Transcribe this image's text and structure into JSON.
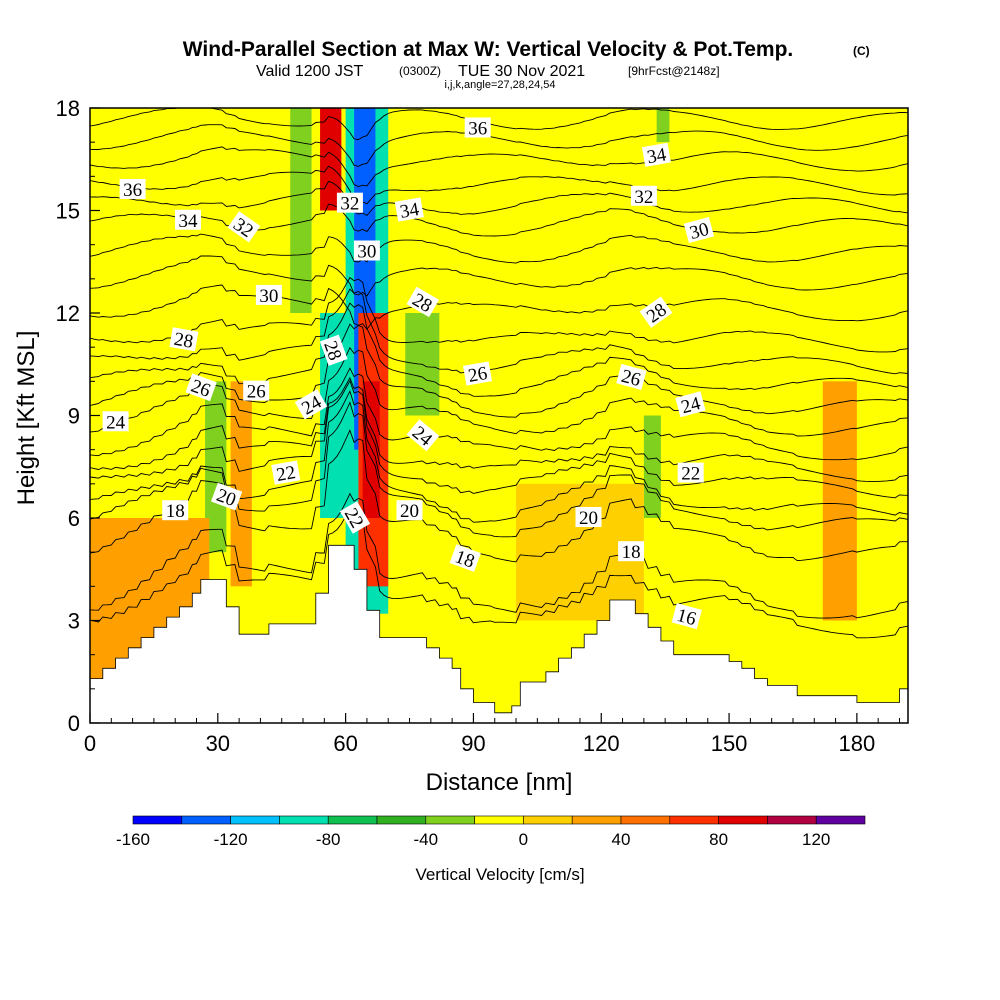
{
  "header": {
    "title_main": "Wind-Parallel Section at Max W: Vertical Velocity & Pot.Temp.",
    "title_mark": "(C)",
    "sub_valid": "Valid 1200 JST",
    "sub_utc": "(0300Z)",
    "sub_date": "TUE 30 Nov 2021",
    "sub_fcst": "[9hrFcst@2148z]",
    "sub_params": "i,j,k,angle=27,28,24,54"
  },
  "chart_data": {
    "type": "heatmap",
    "xlabel": "Distance [nm]",
    "ylabel": "Height [Kft MSL]",
    "xlim": [
      0,
      192
    ],
    "ylim": [
      0,
      18
    ],
    "x_ticks": [
      0,
      30,
      60,
      90,
      120,
      150,
      180
    ],
    "y_ticks": [
      0,
      3,
      6,
      9,
      12,
      15,
      18
    ],
    "x_tick_labels": [
      "0",
      "30",
      "60",
      "90",
      "120",
      "150",
      "180"
    ],
    "y_tick_labels": [
      "0",
      "3",
      "6",
      "9",
      "12",
      "15",
      "18"
    ],
    "colorbar": {
      "label": "Vertical Velocity [cm/s]",
      "min": -160,
      "max": 140,
      "step": 20,
      "tick_values": [
        -160,
        -120,
        -80,
        -40,
        0,
        40,
        80,
        120
      ],
      "tick_labels": [
        "-160",
        "-120",
        "-80",
        "-40",
        "0",
        "40",
        "80",
        "120"
      ],
      "colors": [
        "#0000ff",
        "#0060ff",
        "#00c0ff",
        "#00e0b0",
        "#10c050",
        "#30b020",
        "#80d020",
        "#ffff00",
        "#ffd000",
        "#ffa000",
        "#ff7000",
        "#ff3000",
        "#e00000",
        "#b00040",
        "#6000a0"
      ]
    },
    "terrain_kft": [
      [
        0,
        1.3
      ],
      [
        3,
        1.3
      ],
      [
        3,
        1.6
      ],
      [
        6,
        1.6
      ],
      [
        6,
        1.9
      ],
      [
        9,
        1.9
      ],
      [
        9,
        2.2
      ],
      [
        12,
        2.2
      ],
      [
        12,
        2.5
      ],
      [
        15,
        2.5
      ],
      [
        15,
        2.8
      ],
      [
        18,
        2.8
      ],
      [
        18,
        3.1
      ],
      [
        21,
        3.1
      ],
      [
        21,
        3.4
      ],
      [
        24,
        3.4
      ],
      [
        24,
        3.8
      ],
      [
        26,
        3.8
      ],
      [
        26,
        4.2
      ],
      [
        32,
        4.2
      ],
      [
        32,
        3.4
      ],
      [
        35,
        3.4
      ],
      [
        35,
        2.6
      ],
      [
        42,
        2.6
      ],
      [
        42,
        2.9
      ],
      [
        53,
        2.9
      ],
      [
        53,
        3.8
      ],
      [
        56,
        3.8
      ],
      [
        56,
        5.2
      ],
      [
        62,
        5.2
      ],
      [
        62,
        4.5
      ],
      [
        65,
        4.5
      ],
      [
        65,
        3.3
      ],
      [
        68,
        3.3
      ],
      [
        68,
        2.5
      ],
      [
        79,
        2.5
      ],
      [
        79,
        2.2
      ],
      [
        82,
        2.2
      ],
      [
        82,
        1.9
      ],
      [
        85,
        1.9
      ],
      [
        85,
        1.6
      ],
      [
        87,
        1.6
      ],
      [
        87,
        1.0
      ],
      [
        90,
        1.0
      ],
      [
        90,
        0.6
      ],
      [
        95,
        0.6
      ],
      [
        95,
        0.3
      ],
      [
        99,
        0.3
      ],
      [
        99,
        0.5
      ],
      [
        101,
        0.5
      ],
      [
        101,
        1.2
      ],
      [
        107,
        1.2
      ],
      [
        107,
        1.5
      ],
      [
        110,
        1.5
      ],
      [
        110,
        1.9
      ],
      [
        113,
        1.9
      ],
      [
        113,
        2.2
      ],
      [
        116,
        2.2
      ],
      [
        116,
        2.6
      ],
      [
        119,
        2.6
      ],
      [
        119,
        3.0
      ],
      [
        122,
        3.0
      ],
      [
        122,
        3.6
      ],
      [
        128,
        3.6
      ],
      [
        128,
        3.2
      ],
      [
        131,
        3.2
      ],
      [
        131,
        2.8
      ],
      [
        134,
        2.8
      ],
      [
        134,
        2.4
      ],
      [
        137,
        2.4
      ],
      [
        137,
        2.0
      ],
      [
        150,
        2.0
      ],
      [
        150,
        1.8
      ],
      [
        153,
        1.8
      ],
      [
        153,
        1.6
      ],
      [
        156,
        1.6
      ],
      [
        156,
        1.3
      ],
      [
        159,
        1.3
      ],
      [
        159,
        1.1
      ],
      [
        166,
        1.1
      ],
      [
        166,
        0.8
      ],
      [
        180,
        0.8
      ],
      [
        180,
        0.6
      ],
      [
        190,
        0.6
      ],
      [
        190,
        1.0
      ],
      [
        192,
        1.0
      ]
    ],
    "w_cells_cm_s": [
      {
        "x0": 60,
        "x1": 70,
        "y0": 3.2,
        "y1": 18,
        "w": -90
      },
      {
        "x0": 62,
        "x1": 67,
        "y0": 8,
        "y1": 18,
        "w": -130
      },
      {
        "x0": 54,
        "x1": 61,
        "y0": 6,
        "y1": 12,
        "w": -100
      },
      {
        "x0": 63,
        "x1": 70,
        "y0": 4,
        "y1": 12,
        "w": 70
      },
      {
        "x0": 64,
        "x1": 68,
        "y0": 6,
        "y1": 10,
        "w": 90
      },
      {
        "x0": 54,
        "x1": 59,
        "y0": 15,
        "y1": 18,
        "w": 80
      },
      {
        "x0": 47,
        "x1": 52,
        "y0": 12,
        "y1": 18,
        "w": -40
      },
      {
        "x0": 74,
        "x1": 82,
        "y0": 9,
        "y1": 12,
        "w": -40
      },
      {
        "x0": 33,
        "x1": 38,
        "y0": 4,
        "y1": 10,
        "w": 30
      },
      {
        "x0": 27,
        "x1": 32,
        "y0": 5,
        "y1": 10,
        "w": -30
      },
      {
        "x0": 0,
        "x1": 28,
        "y0": 0,
        "y1": 6,
        "w": 20
      },
      {
        "x0": 130,
        "x1": 134,
        "y0": 6,
        "y1": 9,
        "w": -30
      },
      {
        "x0": 133,
        "x1": 136,
        "y0": 17,
        "y1": 18,
        "w": -40
      },
      {
        "x0": 100,
        "x1": 130,
        "y0": 3,
        "y1": 7,
        "w": 10
      },
      {
        "x0": 172,
        "x1": 180,
        "y0": 3,
        "y1": 10,
        "w": 20
      }
    ],
    "contours": [
      {
        "theta": 16,
        "base": 2.7
      },
      {
        "theta": 17,
        "base": 3.2
      },
      {
        "theta": 18,
        "base": 4.9
      },
      {
        "theta": 19,
        "base": 5.7
      },
      {
        "theta": 20,
        "base": 6.1
      },
      {
        "theta": 21,
        "base": 6.8
      },
      {
        "theta": 22,
        "base": 7.3
      },
      {
        "theta": 23,
        "base": 7.9
      },
      {
        "theta": 24,
        "base": 8.6
      },
      {
        "theta": 25,
        "base": 9.2
      },
      {
        "theta": 26,
        "base": 9.8
      },
      {
        "theta": 27,
        "base": 10.4
      },
      {
        "theta": 28,
        "base": 11.1
      },
      {
        "theta": 29,
        "base": 12.0
      },
      {
        "theta": 30,
        "base": 12.9
      },
      {
        "theta": 31,
        "base": 13.7
      },
      {
        "theta": 32,
        "base": 14.5
      },
      {
        "theta": 33,
        "base": 15.1
      },
      {
        "theta": 34,
        "base": 15.7
      },
      {
        "theta": 35,
        "base": 16.4
      },
      {
        "theta": 36,
        "base": 17.0
      },
      {
        "theta": 37,
        "base": 17.6
      }
    ],
    "contour_labels": [
      {
        "text": "36",
        "x": 10,
        "y": 15.6,
        "rot": 0
      },
      {
        "text": "34",
        "x": 23,
        "y": 14.7,
        "rot": 0
      },
      {
        "text": "32",
        "x": 36,
        "y": 14.5,
        "rot": 35
      },
      {
        "text": "30",
        "x": 42,
        "y": 12.5,
        "rot": 0
      },
      {
        "text": "28",
        "x": 22,
        "y": 11.2,
        "rot": 10
      },
      {
        "text": "26",
        "x": 26,
        "y": 9.8,
        "rot": 20
      },
      {
        "text": "26",
        "x": 39,
        "y": 9.7,
        "rot": 0
      },
      {
        "text": "24",
        "x": 6,
        "y": 8.8,
        "rot": 0
      },
      {
        "text": "24",
        "x": 52,
        "y": 9.3,
        "rot": -30
      },
      {
        "text": "22",
        "x": 46,
        "y": 7.3,
        "rot": -10
      },
      {
        "text": "20",
        "x": 32,
        "y": 6.6,
        "rot": 20
      },
      {
        "text": "18",
        "x": 20,
        "y": 6.2,
        "rot": 0
      },
      {
        "text": "28",
        "x": 57,
        "y": 10.9,
        "rot": 70
      },
      {
        "text": "30",
        "x": 65,
        "y": 13.8,
        "rot": 0
      },
      {
        "text": "32",
        "x": 61,
        "y": 15.2,
        "rot": 0
      },
      {
        "text": "34",
        "x": 75,
        "y": 15.0,
        "rot": -10
      },
      {
        "text": "36",
        "x": 91,
        "y": 17.4,
        "rot": 0
      },
      {
        "text": "22",
        "x": 62,
        "y": 6.0,
        "rot": 60
      },
      {
        "text": "28",
        "x": 78,
        "y": 12.3,
        "rot": 30
      },
      {
        "text": "26",
        "x": 91,
        "y": 10.2,
        "rot": -10
      },
      {
        "text": "24",
        "x": 78,
        "y": 8.4,
        "rot": 40
      },
      {
        "text": "20",
        "x": 75,
        "y": 6.2,
        "rot": 0
      },
      {
        "text": "18",
        "x": 88,
        "y": 4.8,
        "rot": 20
      },
      {
        "text": "20",
        "x": 117,
        "y": 6.0,
        "rot": 0
      },
      {
        "text": "18",
        "x": 127,
        "y": 5.0,
        "rot": 0
      },
      {
        "text": "16",
        "x": 140,
        "y": 3.1,
        "rot": 15
      },
      {
        "text": "22",
        "x": 141,
        "y": 7.3,
        "rot": 0
      },
      {
        "text": "24",
        "x": 141,
        "y": 9.3,
        "rot": -15
      },
      {
        "text": "26",
        "x": 127,
        "y": 10.1,
        "rot": 15
      },
      {
        "text": "28",
        "x": 133,
        "y": 12.0,
        "rot": -35
      },
      {
        "text": "30",
        "x": 143,
        "y": 14.4,
        "rot": -15
      },
      {
        "text": "32",
        "x": 130,
        "y": 15.4,
        "rot": 0
      },
      {
        "text": "34",
        "x": 133,
        "y": 16.6,
        "rot": -10
      }
    ]
  }
}
